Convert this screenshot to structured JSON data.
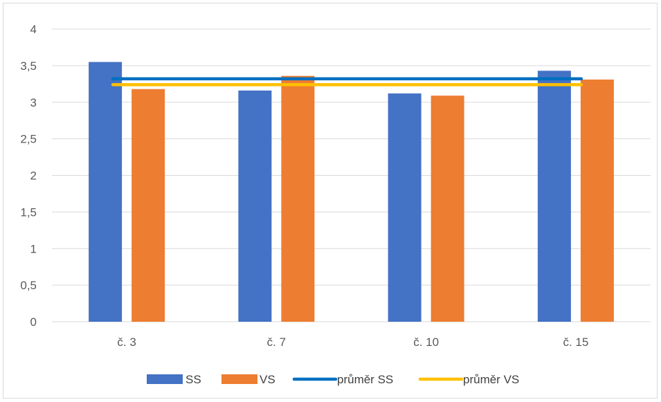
{
  "chart_data": {
    "type": "bar",
    "categories": [
      "č. 3",
      "č. 7",
      "č. 10",
      "č. 15"
    ],
    "series": [
      {
        "name": "SS",
        "kind": "bar",
        "color": "#4472C4",
        "values": [
          3.55,
          3.16,
          3.12,
          3.43
        ]
      },
      {
        "name": "VS",
        "kind": "bar",
        "color": "#ED7D31",
        "values": [
          3.18,
          3.36,
          3.09,
          3.31
        ]
      },
      {
        "name": "průměr SS",
        "kind": "line",
        "color": "#0070C0",
        "values": [
          3.32,
          3.32,
          3.32,
          3.32
        ]
      },
      {
        "name": "průměr VS",
        "kind": "line",
        "color": "#FFC000",
        "values": [
          3.24,
          3.24,
          3.24,
          3.24
        ]
      }
    ],
    "ylim": [
      0,
      4
    ],
    "yticks": [
      "0",
      "0,5",
      "1",
      "1,5",
      "2",
      "2,5",
      "3",
      "3,5",
      "4"
    ],
    "ytick_values": [
      0,
      0.5,
      1,
      1.5,
      2,
      2.5,
      3,
      3.5,
      4
    ],
    "grid": true,
    "legend": "bottom",
    "title": "",
    "xlabel": "",
    "ylabel": ""
  }
}
